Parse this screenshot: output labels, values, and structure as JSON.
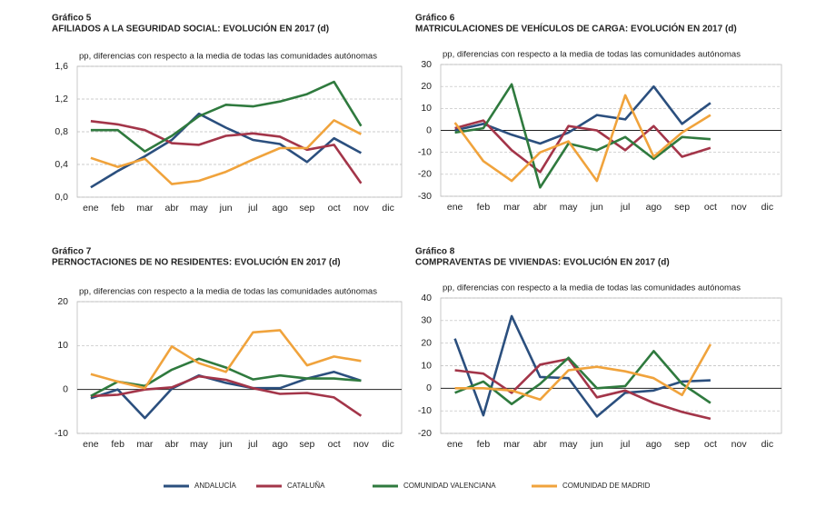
{
  "legend": [
    {
      "name": "ANDALUCÍA",
      "color": "#2b4f7e"
    },
    {
      "name": "CATALUÑA",
      "color": "#a33549"
    },
    {
      "name": "COMUNIDAD VALENCIANA",
      "color": "#2f7a3e"
    },
    {
      "name": "COMUNIDAD DE MADRID",
      "color": "#f0a33c"
    }
  ],
  "chart_data": [
    {
      "type": "line",
      "label": "Gráfico 5",
      "title": "AFILIADOS A LA SEGURIDAD SOCIAL: EVOLUCIÓN EN 2017 (d)",
      "subtitle": "pp, diferencias con respecto a la media de todas las comunidades autónomas",
      "categories": [
        "ene",
        "feb",
        "mar",
        "abr",
        "may",
        "jun",
        "jul",
        "ago",
        "sep",
        "oct",
        "nov",
        "dic"
      ],
      "ylim": [
        0,
        1.6
      ],
      "yticks": [
        {
          "value": 0,
          "label": "0,0"
        },
        {
          "value": 0.4,
          "label": "0,4"
        },
        {
          "value": 0.8,
          "label": "0,8"
        },
        {
          "value": 1.2,
          "label": "1,2"
        },
        {
          "value": 1.6,
          "label": "1,6"
        }
      ],
      "grid": true,
      "series": [
        {
          "values": [
            0.12,
            0.32,
            0.5,
            0.7,
            1.02,
            0.85,
            0.7,
            0.65,
            0.43,
            0.72,
            0.54,
            null
          ]
        },
        {
          "values": [
            0.93,
            0.89,
            0.82,
            0.66,
            0.64,
            0.75,
            0.78,
            0.74,
            0.58,
            0.64,
            0.17,
            null
          ]
        },
        {
          "values": [
            0.82,
            0.82,
            0.56,
            0.75,
            0.99,
            1.13,
            1.11,
            1.17,
            1.26,
            1.41,
            0.87,
            null
          ]
        },
        {
          "values": [
            0.48,
            0.37,
            0.47,
            0.16,
            0.2,
            0.31,
            0.46,
            0.6,
            0.6,
            0.94,
            0.77,
            null
          ]
        }
      ]
    },
    {
      "type": "line",
      "label": "Gráfico 6",
      "title": "MATRICULACIONES DE VEHÍCULOS DE CARGA: EVOLUCIÓN EN 2017 (d)",
      "subtitle": "pp, diferencias con respecto a la media de todas las comunidades autónomas",
      "categories": [
        "ene",
        "feb",
        "mar",
        "abr",
        "may",
        "jun",
        "jul",
        "ago",
        "sep",
        "oct",
        "nov",
        "dic"
      ],
      "ylim": [
        -30,
        30
      ],
      "yticks": [
        -30,
        -20,
        -10,
        0,
        10,
        20,
        30
      ],
      "grid": true,
      "series": [
        {
          "values": [
            0,
            3,
            -2,
            -6,
            -1,
            7,
            5,
            20,
            3,
            12.5,
            null,
            null
          ]
        },
        {
          "values": [
            1,
            4.5,
            -9,
            -19,
            2,
            0,
            -9,
            2,
            -12,
            -8,
            null,
            null
          ]
        },
        {
          "values": [
            -1,
            1,
            21,
            -26,
            -6,
            -9,
            -3,
            -13,
            -3,
            -4,
            null,
            null
          ]
        },
        {
          "values": [
            3.5,
            -14,
            -23,
            -10,
            -5,
            -23,
            16,
            -12,
            -1,
            7,
            null,
            null
          ]
        }
      ]
    },
    {
      "type": "line",
      "label": "Gráfico 7",
      "title": "PERNOCTACIONES DE NO RESIDENTES: EVOLUCIÓN EN 2017 (d)",
      "subtitle": "pp, diferencias con respecto a la media de todas las comunidades autónomas",
      "categories": [
        "ene",
        "feb",
        "mar",
        "abr",
        "may",
        "jun",
        "jul",
        "ago",
        "sep",
        "oct",
        "nov",
        "dic"
      ],
      "ylim": [
        -10,
        20
      ],
      "yticks": [
        -10,
        0,
        10,
        20
      ],
      "grid": true,
      "series": [
        {
          "values": [
            -2,
            0,
            -6.5,
            0.2,
            3.2,
            1.5,
            0.3,
            0.3,
            2.5,
            4,
            2,
            null
          ]
        },
        {
          "values": [
            -1.5,
            -1.2,
            0,
            0.5,
            3,
            2.2,
            0.3,
            -1,
            -0.8,
            -1.8,
            -6,
            null
          ]
        },
        {
          "values": [
            -1.5,
            1.8,
            0.8,
            4.5,
            7,
            5,
            2.3,
            3.2,
            2.5,
            2.5,
            2,
            null
          ]
        },
        {
          "values": [
            3.5,
            1.8,
            0.3,
            9.8,
            6,
            4,
            13,
            13.5,
            5.5,
            7.5,
            6.5,
            null
          ]
        }
      ]
    },
    {
      "type": "line",
      "label": "Gráfico 8",
      "title": "COMPRAVENTAS DE VIVIENDAS: EVOLUCIÓN EN 2017 (d)",
      "subtitle": "pp, diferencias con respecto a la media de todas las comunidades autónomas",
      "categories": [
        "ene",
        "feb",
        "mar",
        "abr",
        "may",
        "jun",
        "jul",
        "ago",
        "sep",
        "oct",
        "nov",
        "dic"
      ],
      "ylim": [
        -20,
        40
      ],
      "yticks": [
        -20,
        -10,
        0,
        10,
        20,
        30,
        40
      ],
      "grid": true,
      "series": [
        {
          "values": [
            22,
            -12,
            32,
            5,
            4.5,
            -12.5,
            -2,
            -1,
            3,
            3.5,
            null,
            null
          ]
        },
        {
          "values": [
            8,
            6.5,
            -2,
            10.5,
            13,
            -4,
            -1,
            -6.5,
            -10.5,
            -13.5,
            null,
            null
          ]
        },
        {
          "values": [
            -2,
            3,
            -7,
            2,
            13.5,
            0,
            1,
            16.5,
            2,
            -6.5,
            null,
            null
          ]
        },
        {
          "values": [
            0,
            0,
            -1,
            -5,
            8,
            9.5,
            7.5,
            4.5,
            -3,
            19.5,
            null,
            null
          ]
        }
      ]
    }
  ]
}
